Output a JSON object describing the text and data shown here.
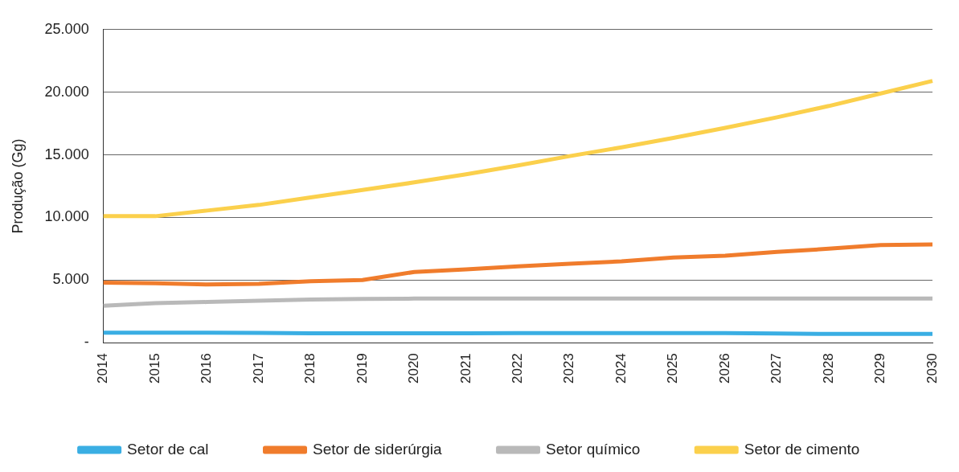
{
  "chart_data": {
    "type": "line",
    "ylabel": "Produção (Gg)",
    "categories": [
      "2014",
      "2015",
      "2016",
      "2017",
      "2018",
      "2019",
      "2020",
      "2021",
      "2022",
      "2023",
      "2024",
      "2025",
      "2026",
      "2027",
      "2028",
      "2029",
      "2030"
    ],
    "series": [
      {
        "name": "Setor de cal",
        "color": "#3aaee3",
        "values": [
          800,
          800,
          800,
          780,
          750,
          750,
          750,
          750,
          760,
          760,
          770,
          760,
          760,
          730,
          700,
          700,
          700
        ]
      },
      {
        "name": "Setor de siderúrgia",
        "color": "#f07c2c",
        "values": [
          4800,
          4750,
          4650,
          4700,
          4900,
          5000,
          5650,
          5850,
          6100,
          6300,
          6500,
          6800,
          6950,
          7250,
          7500,
          7800,
          7850
        ]
      },
      {
        "name": "Setor químico",
        "color": "#b9b9b9",
        "values": [
          2950,
          3150,
          3250,
          3350,
          3450,
          3500,
          3520,
          3520,
          3520,
          3520,
          3520,
          3520,
          3520,
          3520,
          3520,
          3520,
          3520
        ]
      },
      {
        "name": "Setor de cimento",
        "color": "#fbd04c",
        "values": [
          10100,
          10100,
          10550,
          11000,
          11600,
          12200,
          12800,
          13450,
          14150,
          14900,
          15600,
          16350,
          17150,
          18000,
          18900,
          19900,
          20900
        ]
      }
    ],
    "ylim": [
      0,
      25000
    ],
    "yticks": [
      {
        "value": 0,
        "label": "-"
      },
      {
        "value": 5000,
        "label": "5.000"
      },
      {
        "value": 10000,
        "label": "10.000"
      },
      {
        "value": 15000,
        "label": "15.000"
      },
      {
        "value": 20000,
        "label": "20.000"
      },
      {
        "value": 25000,
        "label": "25.000"
      }
    ],
    "grid": "y",
    "legend": "bottom",
    "marker": "none",
    "line_style": "solid"
  }
}
